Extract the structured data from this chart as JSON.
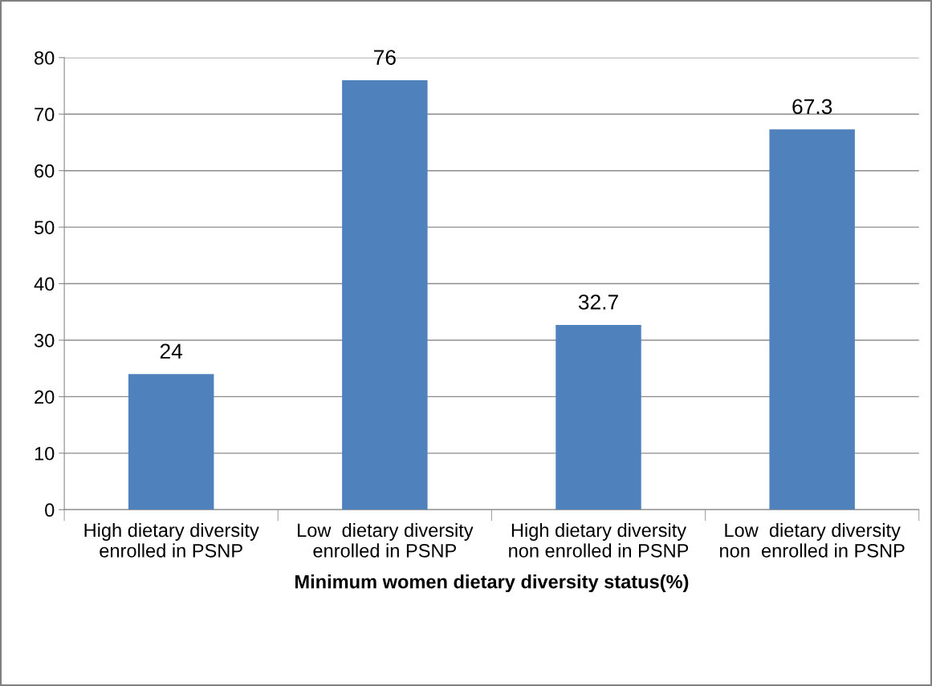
{
  "chart_data": {
    "type": "bar",
    "xlabel": "Minimum women dietary diversity status(%)",
    "categories": [
      "High dietary diversity\nenrolled in PSNP",
      "Low  dietary diversity\nenrolled in PSNP",
      "High dietary diversity\nnon enrolled in PSNP",
      "Low  dietary diversity\nnon  enrolled in PSNP"
    ],
    "values": [
      24,
      76,
      32.7,
      67.3
    ],
    "color": "#4f81bd",
    "ylim": [
      0,
      80
    ],
    "yticks": [
      0,
      10,
      20,
      30,
      40,
      50,
      60,
      70,
      80
    ],
    "grid": "y",
    "data_labels": true,
    "legend": false
  }
}
